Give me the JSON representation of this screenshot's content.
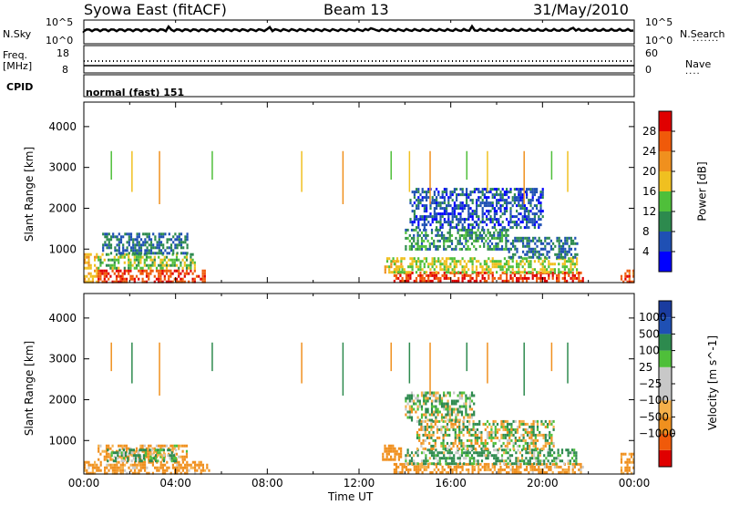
{
  "header": {
    "station": "Syowa East (fitACF)",
    "beam": "Beam 13",
    "date": "31/May/2010"
  },
  "strips": {
    "nsky_label": "N.Sky",
    "nsearch_label": "N.Search",
    "nsky_ticks": [
      "10^5",
      "10^0"
    ],
    "nsearch_ticks": [
      "10^5",
      "10^0"
    ],
    "freq_label_1": "Freq.",
    "freq_label_2": "[MHz]",
    "freq_ticks": [
      "18",
      "8"
    ],
    "nave_label": "Nave",
    "nave_ticks": [
      "60",
      "0"
    ],
    "cpid_label": "CPID",
    "cpid_text": "normal (fast) 151"
  },
  "colors": {
    "power": [
      "#0000ff",
      "#1f50b4",
      "#2d8a4e",
      "#4fbf3a",
      "#f0c020",
      "#f0901e",
      "#f05a0a",
      "#e00000"
    ],
    "velocity": [
      "#e00000",
      "#f05a0a",
      "#f0901e",
      "#f5b04a",
      "#c8c8c8",
      "#c8c8c8",
      "#4fbf3a",
      "#2d8a4e",
      "#1f50b4",
      "#1a3ca0"
    ]
  },
  "chart_data": [
    {
      "type": "heatmap",
      "name": "power",
      "ylabel": "Slant Range [km]",
      "ylim": [
        180,
        4600
      ],
      "y_ticks": [
        1000,
        2000,
        3000,
        4000
      ],
      "colorbar_label": "Power [dB]",
      "colorbar_ticks": [
        4,
        8,
        12,
        16,
        20,
        24,
        28
      ],
      "colorbar_range": [
        0,
        32
      ],
      "regions": [
        {
          "t0": 0.0,
          "t1": 0.6,
          "r0": 200,
          "r1": 900,
          "v": 20
        },
        {
          "t0": 0.6,
          "t1": 5.3,
          "r0": 200,
          "r1": 500,
          "v": 28
        },
        {
          "t0": 0.6,
          "t1": 4.8,
          "r0": 500,
          "r1": 900,
          "v": 14
        },
        {
          "t0": 0.8,
          "t1": 4.5,
          "r0": 900,
          "r1": 1400,
          "v": 8
        },
        {
          "t0": 13.1,
          "t1": 13.8,
          "r0": 450,
          "r1": 800,
          "v": 18
        },
        {
          "t0": 13.5,
          "t1": 21.8,
          "r0": 200,
          "r1": 450,
          "v": 28
        },
        {
          "t0": 13.5,
          "t1": 21.5,
          "r0": 450,
          "r1": 800,
          "v": 16
        },
        {
          "t0": 14.0,
          "t1": 18.5,
          "r0": 1000,
          "r1": 1500,
          "v": 10
        },
        {
          "t0": 14.2,
          "t1": 20.0,
          "r0": 1500,
          "r1": 2500,
          "v": 6
        },
        {
          "t0": 18.5,
          "t1": 21.5,
          "r0": 800,
          "r1": 1300,
          "v": 8
        },
        {
          "t0": 23.4,
          "t1": 24.0,
          "r0": 200,
          "r1": 500,
          "v": 26
        }
      ]
    },
    {
      "type": "heatmap",
      "name": "velocity",
      "ylabel": "Slant Range [km]",
      "ylim": [
        180,
        4600
      ],
      "y_ticks": [
        1000,
        2000,
        3000,
        4000
      ],
      "colorbar_label": "Velocity [m s^-1]",
      "colorbar_ticks": [
        1000,
        500,
        100,
        25,
        -25,
        -100,
        -500,
        -1000
      ],
      "regions": [
        {
          "t0": 0.0,
          "t1": 5.5,
          "r0": 200,
          "r1": 500,
          "v": -200
        },
        {
          "t0": 0.6,
          "t1": 4.5,
          "r0": 500,
          "r1": 900,
          "v": -150
        },
        {
          "t0": 1.0,
          "t1": 4.0,
          "r0": 500,
          "r1": 800,
          "v": 150
        },
        {
          "t0": 13.0,
          "t1": 13.8,
          "r0": 500,
          "r1": 900,
          "v": -300
        },
        {
          "t0": 13.5,
          "t1": 21.8,
          "r0": 200,
          "r1": 450,
          "v": -200
        },
        {
          "t0": 14.0,
          "t1": 21.5,
          "r0": 450,
          "r1": 800,
          "v": 150
        },
        {
          "t0": 14.5,
          "t1": 20.5,
          "r0": 800,
          "r1": 1500,
          "v": 0
        },
        {
          "t0": 14.0,
          "t1": 17.0,
          "r0": 1500,
          "r1": 2200,
          "v": 80
        },
        {
          "t0": 23.4,
          "t1": 24.0,
          "r0": 200,
          "r1": 700,
          "v": -200
        }
      ]
    }
  ],
  "xaxis": {
    "label": "Time UT",
    "ticks": [
      "00:00",
      "04:00",
      "08:00",
      "12:00",
      "16:00",
      "20:00",
      "00:00"
    ],
    "range_hours": [
      0,
      24
    ]
  }
}
